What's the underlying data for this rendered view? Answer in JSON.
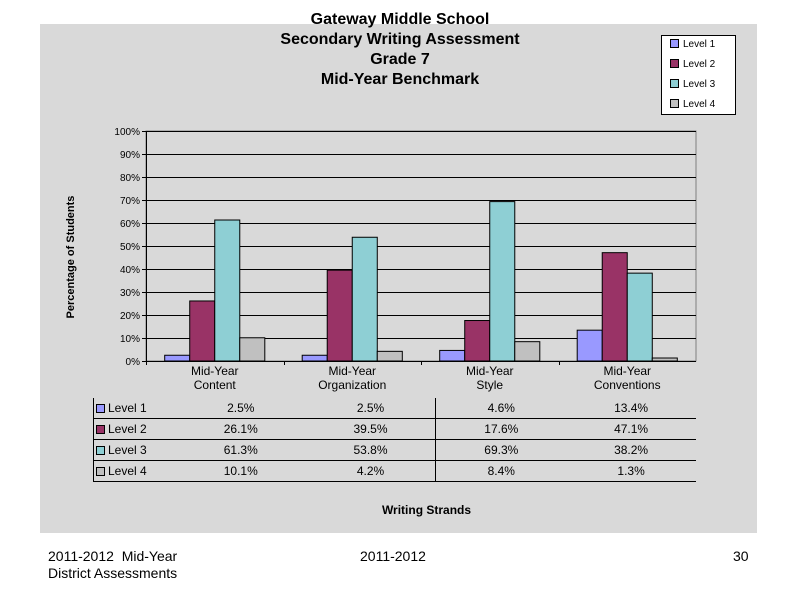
{
  "footer": {
    "left_line1": "2011-2012  Mid-Year",
    "left_line2": "District Assessments",
    "center": "2011-2012",
    "page_number": "30"
  },
  "colors": {
    "panel_bg": "#d9d9d9",
    "level1": "#9999ff",
    "level2": "#993366",
    "level3": "#8ecfd4",
    "level4": "#c0c0c0"
  },
  "chart_data": {
    "type": "bar",
    "title_lines": [
      "Gateway Middle School",
      "Secondary Writing Assessment",
      "Grade 7",
      "Mid-Year Benchmark"
    ],
    "ylabel": "Percentage of Students",
    "xlabel": "Writing Strands",
    "ylim": [
      0,
      100
    ],
    "yticks": [
      "0%",
      "10%",
      "20%",
      "30%",
      "40%",
      "50%",
      "60%",
      "70%",
      "80%",
      "90%",
      "100%"
    ],
    "grid": true,
    "legend_position": "top-right",
    "categories": [
      [
        "Mid-Year",
        "Content"
      ],
      [
        "Mid-Year",
        "Organization"
      ],
      [
        "Mid-Year",
        "Style"
      ],
      [
        "Mid-Year",
        "Conventions"
      ]
    ],
    "series": [
      {
        "name": "Level 1",
        "values": [
          2.5,
          2.5,
          4.6,
          13.4
        ],
        "labels": [
          "2.5%",
          "2.5%",
          "4.6%",
          "13.4%"
        ]
      },
      {
        "name": "Level 2",
        "values": [
          26.1,
          39.5,
          17.6,
          47.1
        ],
        "labels": [
          "26.1%",
          "39.5%",
          "17.6%",
          "47.1%"
        ]
      },
      {
        "name": "Level 3",
        "values": [
          61.3,
          53.8,
          69.3,
          38.2
        ],
        "labels": [
          "61.3%",
          "53.8%",
          "69.3%",
          "38.2%"
        ]
      },
      {
        "name": "Level 4",
        "values": [
          10.1,
          4.2,
          8.4,
          1.3
        ],
        "labels": [
          "10.1%",
          "4.2%",
          "8.4%",
          "1.3%"
        ]
      }
    ]
  }
}
